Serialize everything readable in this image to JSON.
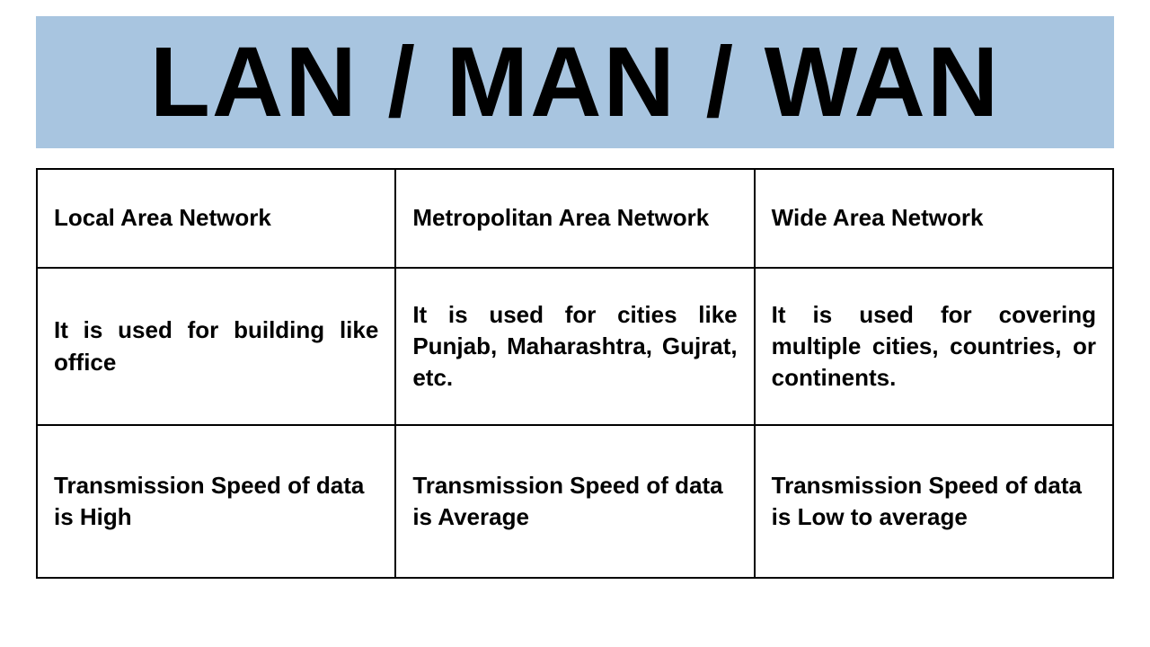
{
  "title": "LAN / MAN / WAN",
  "banner_background": "#a8c5e0",
  "title_color": "#000000",
  "title_fontsize": 110,
  "page_background": "#ffffff",
  "border_color": "#000000",
  "cell_fontsize": 26,
  "cell_fontweight": 700,
  "table": {
    "columns": [
      "LAN",
      "MAN",
      "WAN"
    ],
    "rows": [
      {
        "lan": "Local Area Network",
        "man": "Metropolitan Area Network",
        "wan": "Wide Area Network"
      },
      {
        "lan": "It is used for building like office",
        "man": "It is used for cities like Punjab, Maharashtra, Gujrat, etc.",
        "wan": "It is used for covering multiple cities, countries, or continents."
      },
      {
        "lan": "Transmission Speed of data is High",
        "man": "Transmission Speed of data is Average",
        "wan": "Transmission Speed of data is Low to average"
      }
    ]
  }
}
